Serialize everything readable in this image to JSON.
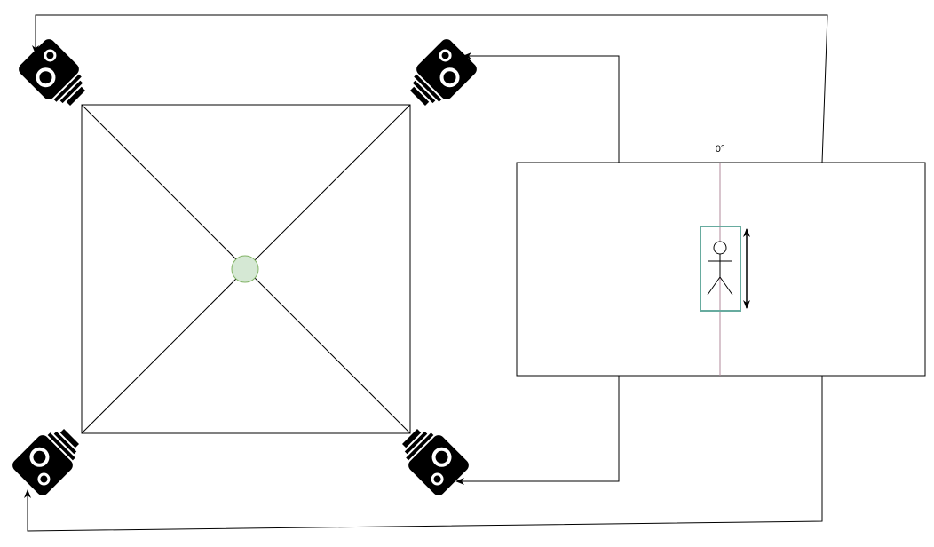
{
  "diagram": {
    "angle_label": "0°",
    "cameras": [
      {
        "name": "camera-top-left-icon",
        "icon": "video-camera-icon"
      },
      {
        "name": "camera-top-right-icon",
        "icon": "video-camera-icon"
      },
      {
        "name": "camera-bottom-left-icon",
        "icon": "video-camera-icon"
      },
      {
        "name": "camera-bottom-right-icon",
        "icon": "video-camera-icon"
      }
    ],
    "figure_icon": "stick-figure-icon",
    "colors": {
      "stroke": "#000000",
      "center_fill": "#d5e8d4",
      "center_stroke": "#82b366",
      "bbox_stroke": "#67ab9f",
      "center_line": "#b08a9b"
    }
  }
}
